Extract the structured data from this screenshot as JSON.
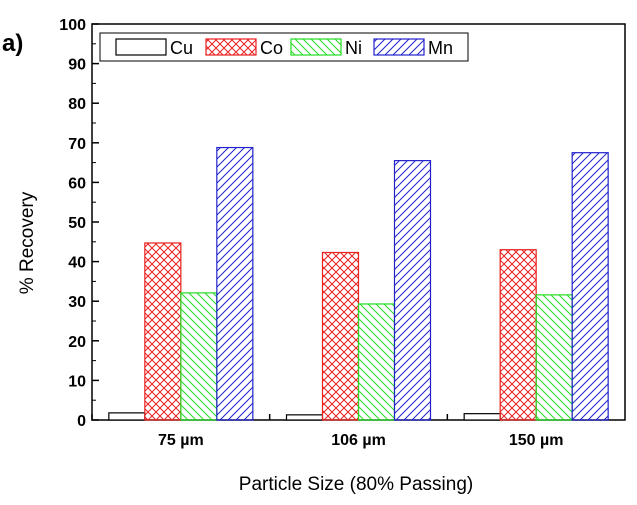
{
  "panel_label": "a)",
  "chart_data": {
    "type": "bar",
    "title": "",
    "xlabel": "Particle Size (80% Passing)",
    "ylabel": "% Recovery",
    "categories": [
      "75 µm",
      "106 µm",
      "150 µm"
    ],
    "ylim": [
      0,
      100
    ],
    "yticks": [
      0,
      10,
      20,
      30,
      40,
      50,
      60,
      70,
      80,
      90,
      100
    ],
    "legend_position": "top-left",
    "grid": false,
    "series": [
      {
        "name": "Cu",
        "values": [
          1.8,
          1.3,
          1.6
        ],
        "color": "#000000",
        "pattern": "none"
      },
      {
        "name": "Co",
        "values": [
          44.7,
          42.3,
          43.0
        ],
        "color": "#e8201e",
        "pattern": "crosshatch"
      },
      {
        "name": "Ni",
        "values": [
          32.1,
          29.3,
          31.6
        ],
        "color": "#22dd22",
        "pattern": "backslash"
      },
      {
        "name": "Mn",
        "values": [
          68.8,
          65.5,
          67.5
        ],
        "color": "#2222cc",
        "pattern": "slash"
      }
    ]
  }
}
